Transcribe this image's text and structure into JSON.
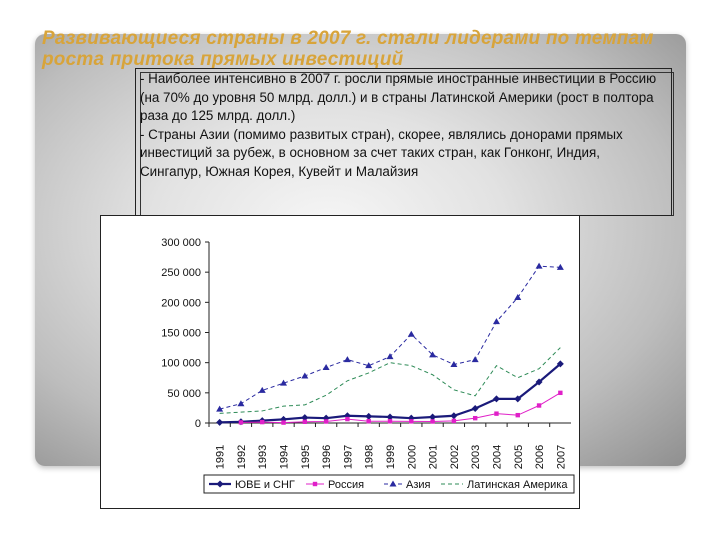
{
  "slide": {
    "title": "Развивающиеся страны в 2007 г. стали лидерами по темпам роста притока прямых инвестиций",
    "bullets": [
      "- Наиболее интенсивно в 2007 г. росли прямые иностранные инвестиции в Россию (на 70% до уровня 50 млрд. долл.) и в страны Латинской Америки (рост в полтора раза до 125 млрд. долл.)",
      "- Страны Азии (помимо развитых стран), скорее, являлись донорами прямых инвестиций за рубеж, в основном за счет таких стран, как Гонконг, Индия, Сингапур, Южная Корея, Кувейт и Малайзия"
    ]
  },
  "colors": {
    "title": "#d8a43a",
    "series": [
      "#1a1a7a",
      "#e020c8",
      "#2a2aa0",
      "#2e8b57"
    ]
  },
  "chart_data": {
    "type": "line",
    "categories": [
      "1991",
      "1992",
      "1993",
      "1994",
      "1995",
      "1996",
      "1997",
      "1998",
      "1999",
      "2000",
      "2001",
      "2002",
      "2003",
      "2004",
      "2005",
      "2006",
      "2007"
    ],
    "yticks": [
      "300 000",
      "250 000",
      "200 000",
      "150 000",
      "100 000",
      "50 000",
      "0"
    ],
    "ylim": [
      0,
      300000
    ],
    "grid": false,
    "legend_position": "bottom",
    "series": [
      {
        "name": "ЮВЕ и СНГ",
        "marker": "diamond",
        "values": [
          1000,
          2000,
          4000,
          6000,
          9000,
          8000,
          12000,
          11000,
          10000,
          8000,
          10000,
          12000,
          24000,
          40000,
          40000,
          68000,
          98000
        ]
      },
      {
        "name": "Россия",
        "marker": "square",
        "values": [
          null,
          1000,
          1500,
          700,
          2000,
          2500,
          6500,
          3000,
          3000,
          2700,
          2500,
          3500,
          8000,
          15500,
          13000,
          29000,
          50000
        ]
      },
      {
        "name": "Азия",
        "marker": "triangle",
        "values": [
          23000,
          32000,
          54000,
          66000,
          78000,
          92000,
          105000,
          95000,
          110000,
          147000,
          113000,
          97000,
          105000,
          168000,
          208000,
          260000,
          258000
        ]
      },
      {
        "name": "Латинская Америка",
        "marker": "none",
        "values": [
          16000,
          18000,
          20000,
          28000,
          30000,
          46000,
          70000,
          83000,
          100000,
          95000,
          80000,
          55000,
          45000,
          95000,
          75000,
          90000,
          125000
        ]
      }
    ]
  }
}
